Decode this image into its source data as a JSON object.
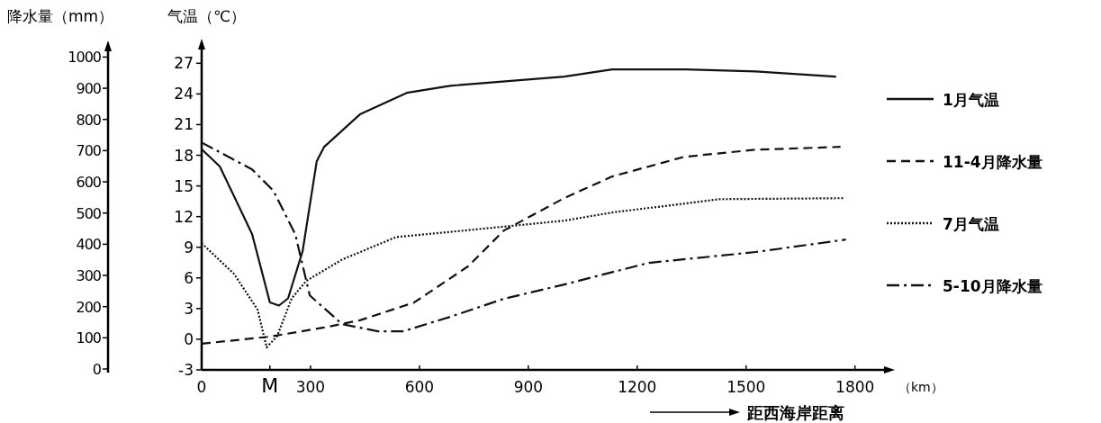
{
  "chart_data": {
    "type": "line",
    "ylabel": "气温（℃）",
    "y2label": "降水量（mm）",
    "xlabel": "（km）",
    "annotations": [
      "距西海岸距离"
    ],
    "xlim": [
      0,
      1890
    ],
    "xticks": [
      0,
      {
        "value": 188,
        "label": "M"
      },
      300,
      600,
      900,
      1200,
      1500,
      1800
    ],
    "ylim": [
      -3,
      28.7
    ],
    "yticks": [
      -3,
      0,
      3,
      6,
      9,
      12,
      15,
      18,
      21,
      24,
      27
    ],
    "y2lim": [
      0,
      1030
    ],
    "y2ticks": [
      0,
      100,
      200,
      300,
      400,
      500,
      600,
      700,
      800,
      900,
      1000
    ],
    "grid": false,
    "legend": "right",
    "marker": "none",
    "series": [
      {
        "name": "1月气温",
        "color": "#111111",
        "line_style": "solid",
        "x": [
          0,
          50,
          139,
          188,
          213,
          238,
          278,
          317,
          337,
          436,
          565,
          684,
          999,
          1131,
          1329,
          1527,
          1746
        ],
        "values": [
          18.6,
          16.9,
          10.3,
          3.6,
          3.3,
          4.0,
          8.6,
          17.4,
          18.8,
          22.0,
          24.1,
          24.8,
          25.7,
          26.4,
          26.4,
          26.2,
          25.7
        ]
      },
      {
        "name": "11-4月降水量",
        "color": "#111111",
        "line_style": "dashed",
        "axis": "y2",
        "x": [
          0,
          188,
          337,
          436,
          585,
          734,
          833,
          999,
          1131,
          1329,
          1527,
          1760
        ],
        "values": [
          81,
          104,
          133,
          156,
          213,
          329,
          444,
          548,
          617,
          680,
          703,
          712
        ]
      },
      {
        "name": "7月气温",
        "color": "#111111",
        "line_style": "dotted",
        "x": [
          0,
          89,
          154,
          179,
          208,
          248,
          288,
          387,
          536,
          684,
          999,
          1131,
          1428,
          1770
        ],
        "values": [
          9.4,
          6.4,
          2.9,
          -0.8,
          0.3,
          4.0,
          5.7,
          7.8,
          10.0,
          10.5,
          11.6,
          12.4,
          13.7,
          13.8
        ]
      },
      {
        "name": "5-10月降水量",
        "color": "#111111",
        "line_style": "dashdot",
        "axis": "y2",
        "x": [
          0,
          139,
          198,
          258,
          298,
          387,
          486,
          555,
          684,
          833,
          999,
          1230,
          1527,
          1775
        ],
        "values": [
          726,
          640,
          571,
          432,
          236,
          144,
          121,
          121,
          167,
          225,
          271,
          340,
          375,
          415
        ]
      }
    ]
  }
}
